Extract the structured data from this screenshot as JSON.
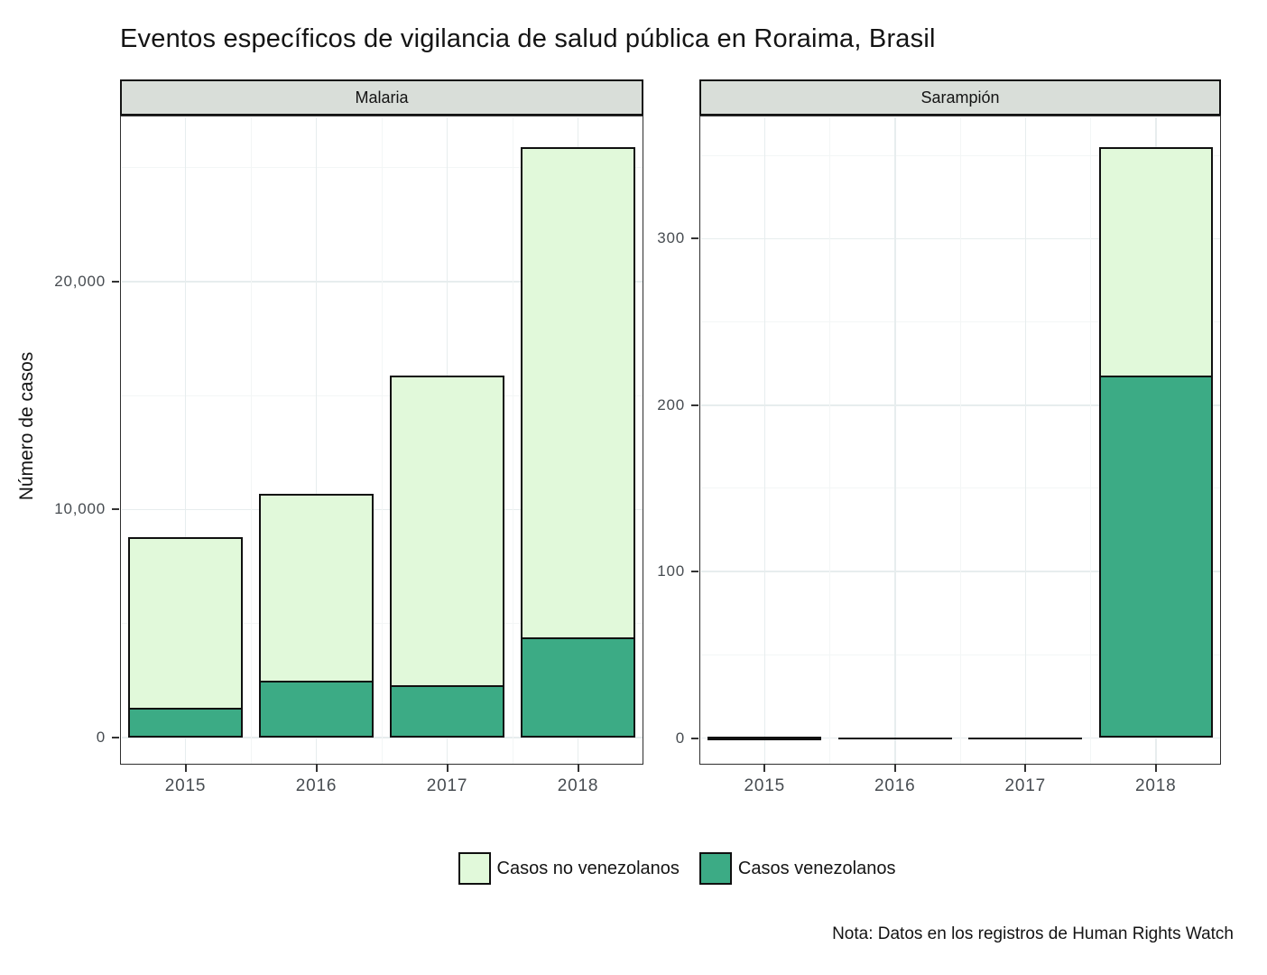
{
  "title": "Eventos específicos de vigilancia de salud pública en Roraima, Brasil",
  "note": "Nota: Datos en los registros de Human Rights Watch",
  "legend": {
    "items": [
      {
        "label": "Casos no venezolanos",
        "color": "#e1f9da"
      },
      {
        "label": "Casos venezolanos",
        "color": "#3cab85"
      }
    ]
  },
  "colors": {
    "no_venezolanos_fill": "#e1f9da",
    "venezolanos_fill": "#3cab85",
    "bar_stroke": "#101010",
    "strip_background": "#d9ded9",
    "panel_border": "#2e2e2e",
    "grid_major": "#e7edee",
    "grid_minor": "#f3f6f6",
    "tick_label": "#474c51"
  },
  "chart_data": {
    "type": "bar",
    "stacked": true,
    "title": "Eventos específicos de vigilancia de salud pública en Roraima, Brasil",
    "ylabel": "Número de casos",
    "xlabel": "",
    "categories": [
      "2015",
      "2016",
      "2017",
      "2018"
    ],
    "legend_position": "bottom",
    "grid": true,
    "panels": [
      {
        "title": "Malaria",
        "series": [
          {
            "name": "Casos venezolanos",
            "values": [
              1300,
              2500,
              2300,
              4400
            ]
          },
          {
            "name": "Casos no venezolanos",
            "values": [
              7500,
              8200,
              13600,
              21500
            ]
          }
        ],
        "totals": [
          8800,
          10700,
          15900,
          25900
        ],
        "ylim": [
          -1190,
          27290
        ],
        "yticks": [
          0,
          10000,
          20000
        ],
        "ytick_labels": [
          "0",
          "10,000",
          "20,000"
        ],
        "yminor": [
          5000,
          15000,
          25000
        ]
      },
      {
        "title": "Sarampión",
        "series": [
          {
            "name": "Casos venezolanos",
            "values": [
              0,
              0,
              0,
              218
            ]
          },
          {
            "name": "Casos no venezolanos",
            "values": [
              1,
              0,
              0,
              137
            ]
          }
        ],
        "totals": [
          1,
          0,
          0,
          355
        ],
        "ylim": [
          -16,
          374
        ],
        "yticks": [
          0,
          100,
          200,
          300
        ],
        "ytick_labels": [
          "0",
          "100",
          "200",
          "300"
        ],
        "yminor": [
          50,
          150,
          250,
          350
        ]
      }
    ]
  }
}
